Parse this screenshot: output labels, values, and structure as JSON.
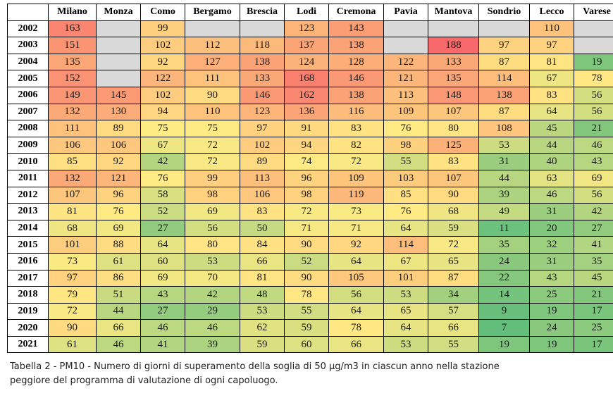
{
  "table": {
    "columns": [
      "Milano",
      "Monza",
      "Como",
      "Bergamo",
      "Brescia",
      "Lodi",
      "Cremona",
      "Pavia",
      "Mantova",
      "Sondrio",
      "Lecco",
      "Varese"
    ],
    "rows": [
      {
        "year": "2002",
        "values": [
          163,
          null,
          99,
          null,
          null,
          123,
          143,
          null,
          null,
          null,
          110,
          null
        ]
      },
      {
        "year": "2003",
        "values": [
          151,
          null,
          102,
          112,
          118,
          137,
          138,
          null,
          188,
          97,
          97,
          null
        ]
      },
      {
        "year": "2004",
        "values": [
          135,
          null,
          92,
          127,
          138,
          124,
          128,
          122,
          133,
          87,
          81,
          19
        ]
      },
      {
        "year": "2005",
        "values": [
          152,
          null,
          122,
          111,
          133,
          168,
          146,
          121,
          135,
          114,
          67,
          78
        ]
      },
      {
        "year": "2006",
        "values": [
          149,
          145,
          102,
          90,
          146,
          162,
          138,
          113,
          148,
          138,
          83,
          56
        ]
      },
      {
        "year": "2007",
        "values": [
          132,
          130,
          94,
          110,
          123,
          136,
          116,
          109,
          107,
          87,
          64,
          56
        ]
      },
      {
        "year": "2008",
        "values": [
          111,
          89,
          75,
          75,
          97,
          91,
          83,
          76,
          80,
          108,
          45,
          21
        ]
      },
      {
        "year": "2009",
        "values": [
          106,
          106,
          67,
          72,
          102,
          94,
          82,
          98,
          125,
          53,
          44,
          46
        ]
      },
      {
        "year": "2010",
        "values": [
          85,
          92,
          42,
          72,
          89,
          74,
          72,
          55,
          83,
          31,
          40,
          43
        ]
      },
      {
        "year": "2011",
        "values": [
          132,
          121,
          76,
          99,
          113,
          96,
          109,
          103,
          107,
          44,
          63,
          69
        ]
      },
      {
        "year": "2012",
        "values": [
          107,
          96,
          58,
          98,
          106,
          98,
          119,
          85,
          90,
          39,
          46,
          56
        ]
      },
      {
        "year": "2013",
        "values": [
          81,
          76,
          52,
          69,
          83,
          72,
          73,
          76,
          68,
          49,
          31,
          42
        ]
      },
      {
        "year": "2014",
        "values": [
          68,
          69,
          27,
          56,
          50,
          71,
          71,
          64,
          59,
          11,
          20,
          27
        ]
      },
      {
        "year": "2015",
        "values": [
          101,
          88,
          64,
          80,
          84,
          90,
          92,
          114,
          72,
          35,
          32,
          41
        ]
      },
      {
        "year": "2016",
        "values": [
          73,
          61,
          60,
          53,
          66,
          52,
          64,
          67,
          65,
          24,
          31,
          35
        ]
      },
      {
        "year": "2017",
        "values": [
          97,
          86,
          69,
          70,
          81,
          90,
          105,
          101,
          87,
          22,
          43,
          45
        ]
      },
      {
        "year": "2018",
        "values": [
          79,
          51,
          43,
          42,
          48,
          78,
          56,
          53,
          34,
          14,
          25,
          21
        ]
      },
      {
        "year": "2019",
        "values": [
          72,
          44,
          27,
          29,
          53,
          55,
          64,
          65,
          57,
          9,
          19,
          17
        ]
      },
      {
        "year": "2020",
        "values": [
          90,
          66,
          46,
          46,
          62,
          59,
          78,
          64,
          66,
          7,
          24,
          25
        ]
      },
      {
        "year": "2021",
        "values": [
          61,
          46,
          41,
          39,
          59,
          60,
          66,
          53,
          55,
          19,
          19,
          17
        ]
      }
    ],
    "empty_cell_color": "#d9d9d9",
    "color_scale": {
      "low": "#63be7b",
      "mid": "#ffeb84",
      "high": "#f8696b"
    }
  },
  "caption": {
    "line1": "Tabella 2 - PM10 - Numero di giorni di superamento della soglia di 50 µg/m3 in ciascun anno nella stazione",
    "line2": "peggiore del programma di valutazione di ogni capoluogo."
  }
}
